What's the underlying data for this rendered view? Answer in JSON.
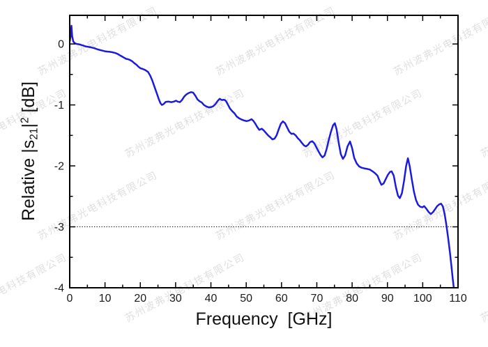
{
  "watermark": {
    "text": "苏州波弗光电科技有限公司",
    "color": "rgba(0,0,0,0.13)"
  },
  "colors": {
    "curve": "#1b1be0",
    "axis": "#000000",
    "tick_label": "#1a1a1a",
    "reference_line": "#000000",
    "background": "#ffffff"
  },
  "chart_data": {
    "type": "line",
    "title": "",
    "xlabel": "Frequency  [GHz]",
    "ylabel_parts": {
      "pre": "Relative |s",
      "sub": "21",
      "mid": "|",
      "sup": "2",
      "post": " [dB]"
    },
    "xlim": [
      0,
      110
    ],
    "ylim": [
      -4,
      0.47
    ],
    "x_ticks": [
      0,
      10,
      20,
      30,
      40,
      50,
      60,
      70,
      80,
      90,
      100,
      110
    ],
    "x_tick_labels": [
      "0",
      "10",
      "20",
      "30",
      "40",
      "50",
      "60",
      "70",
      "80",
      "90",
      "100",
      "110"
    ],
    "x_minor_step": 5,
    "y_ticks": [
      0,
      -1,
      -2,
      -3,
      -4
    ],
    "y_tick_labels": [
      "0",
      "-1",
      "-2",
      "-3",
      "-4"
    ],
    "y_minor_step": 0.5,
    "grid": false,
    "legend": null,
    "reference_line_db": -3,
    "series": [
      {
        "name": "Relative |s21|^2",
        "color": "#1b1be0",
        "points": [
          [
            0,
            0.04
          ],
          [
            0.3,
            0.14
          ],
          [
            0.5,
            0.3
          ],
          [
            0.7,
            0.13
          ],
          [
            1,
            0.04
          ],
          [
            1.5,
            0.01
          ],
          [
            2,
            0
          ],
          [
            2.5,
            -0.005
          ],
          [
            3,
            -0.01
          ],
          [
            3.5,
            -0.02
          ],
          [
            4,
            -0.03
          ],
          [
            4.5,
            -0.04
          ],
          [
            5,
            -0.045
          ],
          [
            6,
            -0.055
          ],
          [
            7,
            -0.07
          ],
          [
            8,
            -0.09
          ],
          [
            9,
            -0.105
          ],
          [
            10,
            -0.12
          ],
          [
            10.6,
            -0.125
          ],
          [
            11.2,
            -0.128
          ],
          [
            11.8,
            -0.132
          ],
          [
            12.4,
            -0.14
          ],
          [
            13,
            -0.15
          ],
          [
            13.6,
            -0.165
          ],
          [
            14.2,
            -0.185
          ],
          [
            14.8,
            -0.205
          ],
          [
            15.4,
            -0.225
          ],
          [
            16,
            -0.245
          ],
          [
            16.5,
            -0.25
          ],
          [
            17,
            -0.26
          ],
          [
            17.6,
            -0.28
          ],
          [
            18.2,
            -0.31
          ],
          [
            18.9,
            -0.34
          ],
          [
            19.5,
            -0.375
          ],
          [
            20.1,
            -0.4
          ],
          [
            20.7,
            -0.41
          ],
          [
            21.3,
            -0.425
          ],
          [
            21.7,
            -0.44
          ],
          [
            22.2,
            -0.46
          ],
          [
            22.8,
            -0.52
          ],
          [
            23.4,
            -0.6
          ],
          [
            24,
            -0.7
          ],
          [
            24.6,
            -0.8
          ],
          [
            25.2,
            -0.9
          ],
          [
            25.7,
            -0.97
          ],
          [
            26.1,
            -1.0
          ],
          [
            26.6,
            -0.985
          ],
          [
            27.2,
            -0.95
          ],
          [
            28,
            -0.945
          ],
          [
            28.8,
            -0.955
          ],
          [
            29.5,
            -0.945
          ],
          [
            30.1,
            -0.93
          ],
          [
            30.6,
            -0.945
          ],
          [
            31.2,
            -0.955
          ],
          [
            31.8,
            -0.92
          ],
          [
            32.4,
            -0.865
          ],
          [
            33,
            -0.83
          ],
          [
            33.7,
            -0.805
          ],
          [
            34.4,
            -0.79
          ],
          [
            35,
            -0.8
          ],
          [
            35.6,
            -0.85
          ],
          [
            36.2,
            -0.91
          ],
          [
            36.8,
            -0.94
          ],
          [
            37.4,
            -0.96
          ],
          [
            38,
            -1.0
          ],
          [
            38.7,
            -1.025
          ],
          [
            39.4,
            -1.04
          ],
          [
            40.1,
            -1.035
          ],
          [
            40.7,
            -1.02
          ],
          [
            41.3,
            -0.985
          ],
          [
            41.9,
            -0.935
          ],
          [
            42.5,
            -0.9
          ],
          [
            43.1,
            -0.92
          ],
          [
            43.7,
            -0.915
          ],
          [
            44.2,
            -0.93
          ],
          [
            44.8,
            -0.995
          ],
          [
            45.4,
            -1.06
          ],
          [
            46,
            -1.1
          ],
          [
            46.7,
            -1.14
          ],
          [
            47.3,
            -1.19
          ],
          [
            48,
            -1.22
          ],
          [
            48.7,
            -1.24
          ],
          [
            49.4,
            -1.255
          ],
          [
            50.1,
            -1.265
          ],
          [
            50.8,
            -1.255
          ],
          [
            51.5,
            -1.235
          ],
          [
            52,
            -1.26
          ],
          [
            52.5,
            -1.3
          ],
          [
            53.1,
            -1.36
          ],
          [
            53.7,
            -1.41
          ],
          [
            54.4,
            -1.39
          ],
          [
            55,
            -1.42
          ],
          [
            55.6,
            -1.46
          ],
          [
            56.2,
            -1.5
          ],
          [
            56.8,
            -1.53
          ],
          [
            57.4,
            -1.565
          ],
          [
            58,
            -1.555
          ],
          [
            58.6,
            -1.5
          ],
          [
            59.2,
            -1.4
          ],
          [
            59.8,
            -1.31
          ],
          [
            60.4,
            -1.27
          ],
          [
            61,
            -1.3
          ],
          [
            61.6,
            -1.37
          ],
          [
            62.2,
            -1.44
          ],
          [
            62.8,
            -1.475
          ],
          [
            63.4,
            -1.47
          ],
          [
            64,
            -1.5
          ],
          [
            64.6,
            -1.545
          ],
          [
            65.2,
            -1.58
          ],
          [
            65.8,
            -1.625
          ],
          [
            66.4,
            -1.665
          ],
          [
            66.9,
            -1.68
          ],
          [
            67.5,
            -1.655
          ],
          [
            68.1,
            -1.61
          ],
          [
            68.7,
            -1.595
          ],
          [
            69.3,
            -1.63
          ],
          [
            69.9,
            -1.695
          ],
          [
            70.5,
            -1.765
          ],
          [
            71.1,
            -1.825
          ],
          [
            71.6,
            -1.86
          ],
          [
            72.2,
            -1.83
          ],
          [
            72.8,
            -1.72
          ],
          [
            73.4,
            -1.57
          ],
          [
            74,
            -1.44
          ],
          [
            74.6,
            -1.335
          ],
          [
            75.1,
            -1.3
          ],
          [
            75.6,
            -1.4
          ],
          [
            76.2,
            -1.62
          ],
          [
            76.8,
            -1.81
          ],
          [
            77.4,
            -1.885
          ],
          [
            78,
            -1.83
          ],
          [
            78.7,
            -1.68
          ],
          [
            79.4,
            -1.6
          ],
          [
            80,
            -1.71
          ],
          [
            80.6,
            -1.87
          ],
          [
            81.3,
            -1.96
          ],
          [
            82,
            -2.01
          ],
          [
            82.7,
            -2.03
          ],
          [
            83.4,
            -2.04
          ],
          [
            84.2,
            -2.05
          ],
          [
            85,
            -2.06
          ],
          [
            85.8,
            -2.09
          ],
          [
            86.5,
            -2.12
          ],
          [
            87.2,
            -2.16
          ],
          [
            87.8,
            -2.25
          ],
          [
            88.3,
            -2.31
          ],
          [
            88.9,
            -2.29
          ],
          [
            89.5,
            -2.22
          ],
          [
            90.1,
            -2.15
          ],
          [
            90.7,
            -2.1
          ],
          [
            91.2,
            -2.09
          ],
          [
            91.8,
            -2.16
          ],
          [
            92.4,
            -2.35
          ],
          [
            93,
            -2.49
          ],
          [
            93.5,
            -2.53
          ],
          [
            94.1,
            -2.45
          ],
          [
            94.7,
            -2.25
          ],
          [
            95.3,
            -2.0
          ],
          [
            95.8,
            -1.875
          ],
          [
            96.3,
            -2.0
          ],
          [
            96.9,
            -2.22
          ],
          [
            97.5,
            -2.42
          ],
          [
            98.1,
            -2.56
          ],
          [
            98.7,
            -2.64
          ],
          [
            99.3,
            -2.67
          ],
          [
            99.9,
            -2.68
          ],
          [
            100.4,
            -2.66
          ],
          [
            101,
            -2.7
          ],
          [
            101.7,
            -2.76
          ],
          [
            102.3,
            -2.79
          ],
          [
            102.9,
            -2.76
          ],
          [
            103.5,
            -2.71
          ],
          [
            104.1,
            -2.66
          ],
          [
            104.7,
            -2.63
          ],
          [
            105.2,
            -2.62
          ],
          [
            105.7,
            -2.665
          ],
          [
            106.2,
            -2.79
          ],
          [
            106.7,
            -2.97
          ],
          [
            107.2,
            -3.18
          ],
          [
            107.7,
            -3.42
          ],
          [
            108.1,
            -3.63
          ],
          [
            108.5,
            -3.85
          ],
          [
            108.8,
            -4.0
          ],
          [
            108.95,
            -4.08
          ]
        ]
      }
    ]
  }
}
